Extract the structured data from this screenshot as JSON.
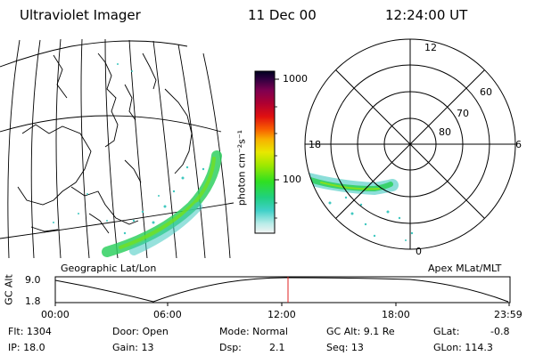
{
  "header": {
    "instrument": "Ultraviolet Imager",
    "date": "11 Dec 00",
    "time": "12:24:00 UT"
  },
  "colorbar": {
    "unit_label": "photon cm⁻²s⁻¹",
    "ticks": [
      "1000",
      "100"
    ]
  },
  "maps": {
    "geo_label": "Geographic Lat/Lon",
    "apex_label": "Apex MLat/MLT",
    "polar_mlt_labels": [
      "12",
      "18",
      "6",
      "0"
    ],
    "polar_mlat_labels": [
      "60",
      "70",
      "80"
    ]
  },
  "altitude_plot": {
    "ylabel": "GC Alt",
    "y_ticks": [
      "9.0",
      "1.8"
    ],
    "x_ticks": [
      "00:00",
      "06:00",
      "12:00",
      "18:00",
      "23:59"
    ],
    "current_time_marker": "12:24"
  },
  "status": {
    "flt": "Flt: 1304",
    "ip": "IP: 18.0",
    "door": "Door: Open",
    "gain": "Gain: 13",
    "mode": "Mode: Normal",
    "dsp_label": "Dsp:",
    "dsp_value": "2.1",
    "gc_alt": "GC Alt: 9.1 Re",
    "seq": "Seq: 13",
    "glat_label": "GLat:",
    "glat_value": "-0.8",
    "glon": "GLon: 114.3"
  }
}
